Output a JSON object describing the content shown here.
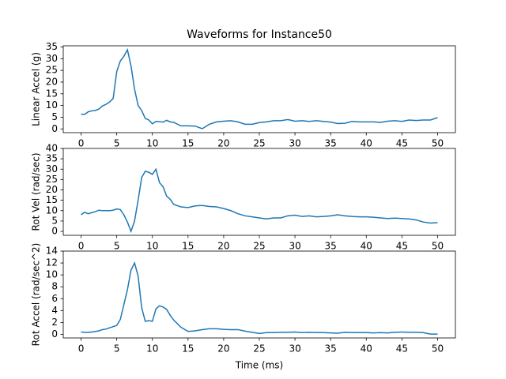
{
  "chart_data": [
    {
      "type": "line",
      "title": "Waveforms for Instance50",
      "ylabel": "Linear Accel (g)",
      "color": "#1f77b4",
      "x": [
        0,
        0.5,
        1,
        1.5,
        2,
        2.5,
        3,
        3.5,
        4,
        4.5,
        5,
        5.5,
        6,
        6.5,
        7,
        7.5,
        8,
        8.5,
        9,
        9.5,
        10,
        10.5,
        11,
        11.5,
        12,
        12.5,
        13,
        14,
        15,
        16,
        17,
        18,
        19,
        20,
        21,
        22,
        23,
        24,
        25,
        26,
        27,
        28,
        29,
        30,
        31,
        32,
        33,
        34,
        35,
        36,
        37,
        38,
        39,
        40,
        41,
        42,
        43,
        44,
        45,
        46,
        47,
        48,
        49,
        50
      ],
      "values": [
        6.3,
        6.2,
        7.3,
        7.7,
        7.9,
        8.5,
        9.8,
        10.5,
        11.5,
        13,
        24.5,
        29,
        31,
        33.8,
        27,
        17,
        10,
        7.8,
        4.5,
        3.8,
        2.2,
        3.2,
        3.1,
        2.9,
        3.7,
        3,
        2.8,
        1.3,
        1.3,
        1.2,
        0.1,
        2,
        3,
        3.3,
        3.5,
        3,
        2,
        2,
        2.7,
        3,
        3.5,
        3.5,
        4,
        3.3,
        3.5,
        3.2,
        3.5,
        3.2,
        2.9,
        2.3,
        2.4,
        3.2,
        3,
        3,
        3,
        2.8,
        3.3,
        3.5,
        3.2,
        3.8,
        3.6,
        3.8,
        3.8,
        4.8
      ],
      "xlim": [
        -2.5,
        52.5
      ],
      "xticks": [
        0,
        5,
        10,
        15,
        20,
        25,
        30,
        35,
        40,
        45,
        50
      ],
      "ylim": [
        -1.6,
        35.5
      ],
      "yticks": [
        0,
        5,
        10,
        15,
        20,
        25,
        30,
        35
      ]
    },
    {
      "type": "line",
      "ylabel": "Rot Vel (rad/sec)",
      "color": "#1f77b4",
      "x": [
        0,
        0.5,
        1,
        1.5,
        2,
        2.5,
        3,
        3.5,
        4,
        4.5,
        5,
        5.5,
        6,
        6.5,
        7,
        7.5,
        8,
        8.5,
        9,
        9.5,
        10,
        10.5,
        11,
        11.5,
        12,
        12.5,
        13,
        14,
        15,
        16,
        17,
        18,
        19,
        20,
        21,
        22,
        23,
        24,
        25,
        26,
        27,
        28,
        29,
        30,
        31,
        32,
        33,
        34,
        35,
        36,
        37,
        38,
        39,
        40,
        41,
        42,
        43,
        44,
        45,
        46,
        47,
        48,
        49,
        50
      ],
      "values": [
        8,
        9.2,
        8.5,
        9,
        9.5,
        10.2,
        10,
        10,
        10,
        10.2,
        10.8,
        10.5,
        8,
        4.5,
        0,
        5,
        15,
        26,
        29,
        28.5,
        27.5,
        30,
        23.5,
        21.5,
        17,
        15.5,
        13,
        11.8,
        11.5,
        12.3,
        12.5,
        12,
        11.8,
        11,
        10,
        8.5,
        7.5,
        7,
        6.5,
        6,
        6.5,
        6.5,
        7.5,
        7.8,
        7.2,
        7.5,
        7,
        7.2,
        7.5,
        8,
        7.5,
        7.2,
        7,
        7,
        6.8,
        6.5,
        6.2,
        6.4,
        6.2,
        6,
        5.5,
        4.5,
        4,
        4.2
      ],
      "xlim": [
        -2.5,
        52.5
      ],
      "xticks": [
        0,
        5,
        10,
        15,
        20,
        25,
        30,
        35,
        40,
        45,
        50
      ],
      "ylim": [
        -1.9,
        40
      ],
      "yticks": [
        0,
        5,
        10,
        15,
        20,
        25,
        30,
        35,
        40
      ]
    },
    {
      "type": "line",
      "ylabel": "Rot Accel (rad/sec^2)",
      "xlabel": "Time (ms)",
      "color": "#1f77b4",
      "x": [
        0,
        0.5,
        1,
        1.5,
        2,
        2.5,
        3,
        3.5,
        4,
        4.5,
        5,
        5.5,
        6,
        6.5,
        7,
        7.5,
        8,
        8.5,
        9,
        9.5,
        10,
        10.5,
        11,
        11.5,
        12,
        12.5,
        13,
        14,
        15,
        16,
        17,
        18,
        19,
        20,
        21,
        22,
        23,
        24,
        25,
        26,
        27,
        28,
        29,
        30,
        31,
        32,
        33,
        34,
        35,
        36,
        37,
        38,
        39,
        40,
        41,
        42,
        43,
        44,
        45,
        46,
        47,
        48,
        49,
        50
      ],
      "values": [
        0.4,
        0.35,
        0.35,
        0.4,
        0.5,
        0.6,
        0.8,
        0.9,
        1.1,
        1.3,
        1.5,
        2.5,
        5,
        7.5,
        10.8,
        12,
        9.8,
        4.5,
        2.2,
        2.3,
        2.2,
        4.3,
        4.8,
        4.6,
        4.2,
        3.2,
        2.4,
        1.2,
        0.5,
        0.6,
        0.8,
        0.95,
        0.95,
        0.85,
        0.8,
        0.8,
        0.55,
        0.35,
        0.15,
        0.3,
        0.3,
        0.35,
        0.35,
        0.4,
        0.3,
        0.35,
        0.3,
        0.3,
        0.25,
        0.2,
        0.35,
        0.3,
        0.3,
        0.3,
        0.25,
        0.3,
        0.25,
        0.35,
        0.4,
        0.35,
        0.35,
        0.3,
        0.05,
        0.05
      ],
      "xlim": [
        -2.5,
        52.5
      ],
      "xticks": [
        0,
        5,
        10,
        15,
        20,
        25,
        30,
        35,
        40,
        45,
        50
      ],
      "ylim": [
        -0.6,
        14
      ],
      "yticks": [
        0,
        2,
        4,
        6,
        8,
        10,
        12,
        14
      ]
    }
  ]
}
